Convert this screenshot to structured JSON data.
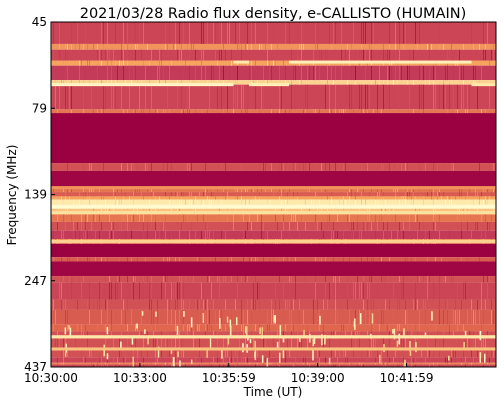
{
  "chart_data": {
    "type": "heatmap",
    "title": "2021/03/28  Radio flux density, e-CALLISTO (HUMAIN)",
    "xlabel": "Time (UT)",
    "ylabel": "Frequency (MHz)",
    "x_ticks": [
      "10:30:00",
      "10:33:00",
      "10:35:59",
      "10:39:00",
      "10:41:59"
    ],
    "y_ticks": [
      "45",
      "79",
      "139",
      "247",
      "437"
    ],
    "y_scale": "log",
    "y_inverted": true,
    "ylim": [
      45,
      437
    ],
    "colormap": [
      "#9b0040",
      "#c43a59",
      "#e0674e",
      "#f6a35f",
      "#fde2a0",
      "#fffbd0"
    ],
    "bands": [
      {
        "from": 45,
        "to": 52,
        "level": 0.25
      },
      {
        "from": 52,
        "to": 54,
        "level": 0.55
      },
      {
        "from": 54,
        "to": 58,
        "level": 0.25
      },
      {
        "from": 58,
        "to": 60,
        "level": 0.6
      },
      {
        "from": 60,
        "to": 66,
        "level": 0.2
      },
      {
        "from": 66,
        "to": 68,
        "level": 0.75
      },
      {
        "from": 68,
        "to": 80,
        "level": 0.25
      },
      {
        "from": 80,
        "to": 82,
        "level": 0.45
      },
      {
        "from": 82,
        "to": 114,
        "level": 0.0
      },
      {
        "from": 114,
        "to": 120,
        "level": 0.3
      },
      {
        "from": 120,
        "to": 134,
        "level": 0.02
      },
      {
        "from": 134,
        "to": 138,
        "level": 0.45
      },
      {
        "from": 138,
        "to": 142,
        "level": 0.35
      },
      {
        "from": 142,
        "to": 145,
        "level": 0.6
      },
      {
        "from": 145,
        "to": 150,
        "level": 0.85
      },
      {
        "from": 150,
        "to": 154,
        "level": 0.95
      },
      {
        "from": 154,
        "to": 160,
        "level": 0.7
      },
      {
        "from": 160,
        "to": 168,
        "level": 0.45
      },
      {
        "from": 168,
        "to": 178,
        "level": 0.3
      },
      {
        "from": 178,
        "to": 188,
        "level": 0.2
      },
      {
        "from": 188,
        "to": 194,
        "level": 0.55
      },
      {
        "from": 194,
        "to": 212,
        "level": 0.0
      },
      {
        "from": 212,
        "to": 218,
        "level": 0.35
      },
      {
        "from": 218,
        "to": 240,
        "level": 0.02
      },
      {
        "from": 240,
        "to": 250,
        "level": 0.3
      },
      {
        "from": 250,
        "to": 280,
        "level": 0.25
      },
      {
        "from": 280,
        "to": 300,
        "level": 0.3
      },
      {
        "from": 300,
        "to": 330,
        "level": 0.35
      },
      {
        "from": 330,
        "to": 345,
        "level": 0.4
      },
      {
        "from": 345,
        "to": 355,
        "level": 0.3
      },
      {
        "from": 355,
        "to": 362,
        "level": 0.75
      },
      {
        "from": 362,
        "to": 385,
        "level": 0.3
      },
      {
        "from": 385,
        "to": 392,
        "level": 0.6
      },
      {
        "from": 392,
        "to": 410,
        "level": 0.3
      },
      {
        "from": 410,
        "to": 425,
        "level": 0.25
      },
      {
        "from": 425,
        "to": 430,
        "level": 0.5
      },
      {
        "from": 430,
        "to": 437,
        "level": 0.25
      }
    ],
    "streaks": [
      {
        "freq": 68.0,
        "t_from": 0.0,
        "t_to": 0.41,
        "level": 0.95
      },
      {
        "freq": 68.0,
        "t_from": 0.445,
        "t_to": 0.535,
        "level": 0.9
      },
      {
        "freq": 68.0,
        "t_from": 0.945,
        "t_to": 1.0,
        "level": 0.85
      },
      {
        "freq": 58.6,
        "t_from": 0.41,
        "t_to": 0.445,
        "level": 0.85
      },
      {
        "freq": 58.6,
        "t_from": 0.535,
        "t_to": 0.945,
        "level": 0.9
      },
      {
        "freq": 134.0,
        "t_from": 0.0,
        "t_to": 1.0,
        "level": 0.55
      },
      {
        "freq": 152.0,
        "t_from": 0.0,
        "t_to": 1.0,
        "level": 1.0
      },
      {
        "freq": 158.0,
        "t_from": 0.0,
        "t_to": 1.0,
        "level": 0.8
      },
      {
        "freq": 191.0,
        "t_from": 0.0,
        "t_to": 1.0,
        "level": 0.75
      },
      {
        "freq": 358.0,
        "t_from": 0.0,
        "t_to": 1.0,
        "level": 0.85
      },
      {
        "freq": 388.0,
        "t_from": 0.0,
        "t_to": 1.0,
        "level": 0.7
      }
    ]
  }
}
